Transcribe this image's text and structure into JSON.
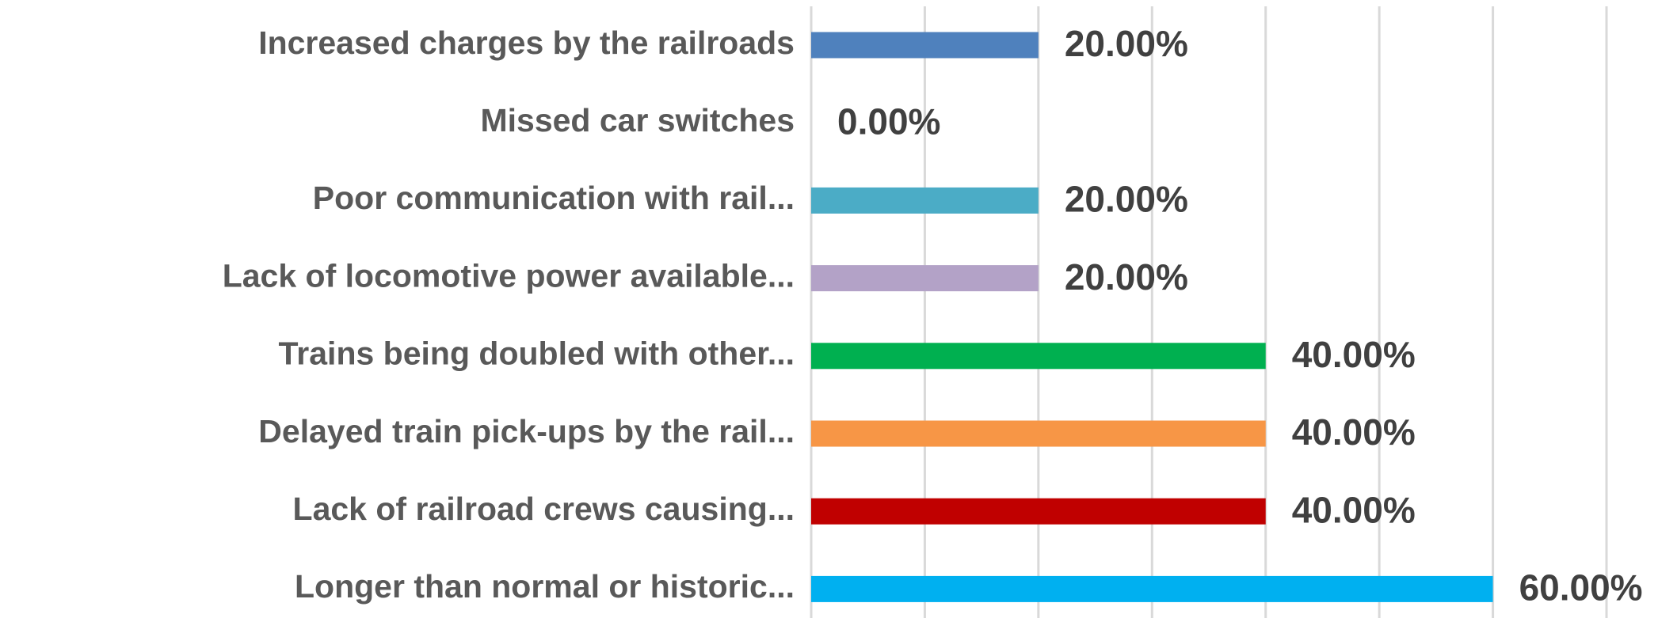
{
  "chart_data": {
    "type": "bar",
    "orientation": "horizontal",
    "categories": [
      "Increased charges by the railroads",
      "Missed car switches",
      "Poor communication with rail...",
      "Lack of locomotive power available...",
      "Trains being doubled with other...",
      "Delayed train pick-ups by the rail...",
      "Lack of railroad crews causing...",
      "Longer than normal or historic..."
    ],
    "values": [
      20,
      0,
      20,
      20,
      40,
      40,
      40,
      60
    ],
    "value_labels": [
      "20.00%",
      "0.00%",
      "20.00%",
      "20.00%",
      "40.00%",
      "40.00%",
      "40.00%",
      "60.00%"
    ],
    "colors": [
      "#4f81bd",
      "#c0c0c0",
      "#4bacc6",
      "#b3a2c7",
      "#00b050",
      "#f79646",
      "#c00000",
      "#00b0f0"
    ],
    "xlim": [
      0,
      70
    ],
    "xticks": [
      0,
      10,
      20,
      30,
      40,
      50,
      60,
      70
    ],
    "grid": true
  }
}
